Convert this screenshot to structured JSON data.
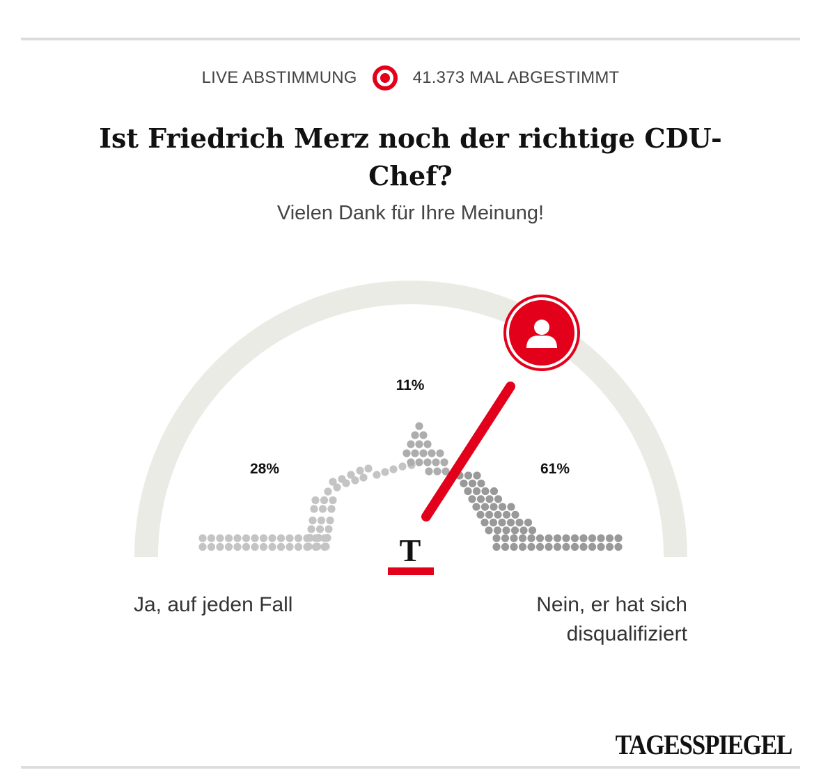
{
  "header": {
    "live_label": "LIVE ABSTIMMUNG",
    "live_icon": "target-icon",
    "votes_label": "41.373 MAL ABGESTIMMT"
  },
  "poll": {
    "question": "Ist Friedrich Merz noch der richtige CDU-Chef?",
    "thanks": "Vielen Dank für Ihre Meinung!",
    "answer_yes": "Ja, auf jeden Fall",
    "answer_no_line1": "Nein, er hat sich",
    "answer_no_line2": "disqualifiziert"
  },
  "chart_data": {
    "type": "gauge",
    "segments": [
      {
        "label": "Ja, auf jeden Fall",
        "percent_label": "28%",
        "value": 28
      },
      {
        "label": "",
        "percent_label": "11%",
        "value": 11
      },
      {
        "label": "Nein, er hat sich disqualifiziert",
        "percent_label": "61%",
        "value": 61
      }
    ],
    "needle_value": 0.72,
    "user_icon": "user-icon",
    "colors": {
      "accent": "#e2001a",
      "track": "#ebebe6",
      "dot_light": "#c4c4c4",
      "dot_mid": "#adadad",
      "dot_dark": "#999999"
    }
  },
  "brand": {
    "logo_letter": "T",
    "name": "TAGESSPIEGEL"
  }
}
